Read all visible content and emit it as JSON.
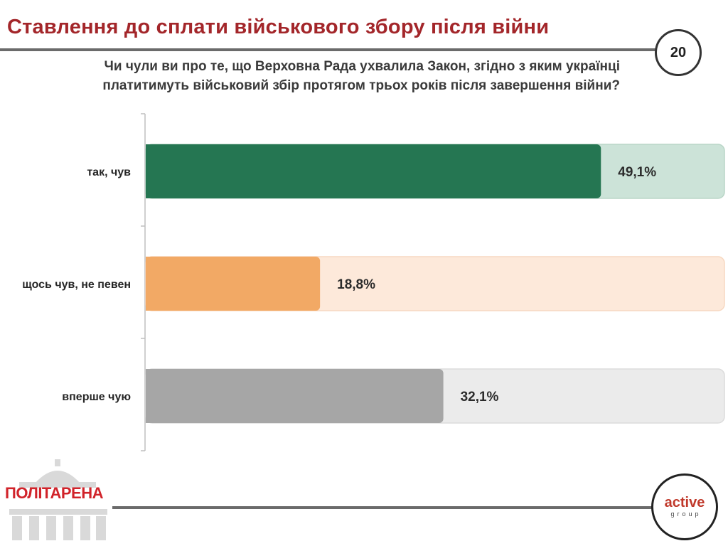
{
  "slide": {
    "title": "Ставлення до сплати військового збору після війни",
    "page_number": "20",
    "question_line1": "Чи чули ви про те, що Верховна Рада ухвалила Закон, згідно з яким українці",
    "question_line2": "платитимуть військовий збір протягом трьох років після завершення війни?"
  },
  "logos": {
    "left_text": "ПОЛІТАРЕНА",
    "right_line1": "active",
    "right_line2": "group"
  },
  "chart_data": {
    "type": "bar",
    "orientation": "horizontal",
    "categories": [
      "так, чув",
      "щось чув, не певен",
      "вперше чую"
    ],
    "values": [
      49.1,
      18.8,
      32.1
    ],
    "value_labels": [
      "49,1%",
      "18,8%",
      "32,1%"
    ],
    "xlim": [
      0,
      100
    ],
    "unit": "%",
    "bar_colors": [
      "#257652",
      "#f2a965",
      "#a6a6a6"
    ],
    "track_colors": [
      "#cce3d8",
      "#fde9da",
      "#ebebeb"
    ],
    "track_border_colors": [
      "#b9d6c7",
      "#f7d8c1",
      "#dcdcdc"
    ],
    "title": "",
    "xlabel": "",
    "ylabel": ""
  }
}
